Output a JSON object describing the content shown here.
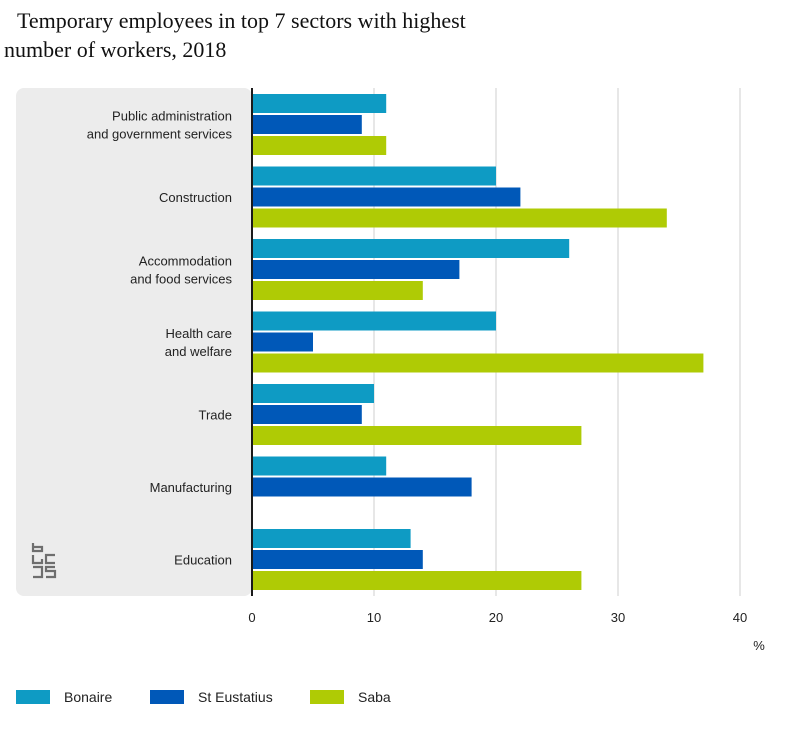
{
  "title": {
    "line1": "Temporary employees in top 7 sectors with highest",
    "line2": "number of workers, 2018"
  },
  "chart_data": {
    "type": "bar",
    "orientation": "horizontal",
    "categories": [
      [
        "Public administration",
        "and government services"
      ],
      [
        "Construction"
      ],
      [
        "Accommodation",
        "and food services"
      ],
      [
        "Health care",
        "and welfare"
      ],
      [
        "Trade"
      ],
      [
        "Manufacturing"
      ],
      [
        "Education"
      ]
    ],
    "series": [
      {
        "name": "Bonaire",
        "color": "#0e9bc4",
        "values": [
          11,
          20,
          26,
          20,
          10,
          11,
          13
        ]
      },
      {
        "name": "St Eustatius",
        "color": "#0058b8",
        "values": [
          9,
          22,
          17,
          5,
          9,
          18,
          14
        ]
      },
      {
        "name": "Saba",
        "color": "#afcb05",
        "values": [
          11,
          34,
          14,
          37,
          27,
          null,
          27
        ]
      }
    ],
    "xlim": [
      0,
      40
    ],
    "xticks": [
      0,
      10,
      20,
      30,
      40
    ],
    "xunit": "%",
    "grid": true,
    "legend_position": "bottom"
  },
  "logo": {
    "name": "cbs-logo"
  }
}
